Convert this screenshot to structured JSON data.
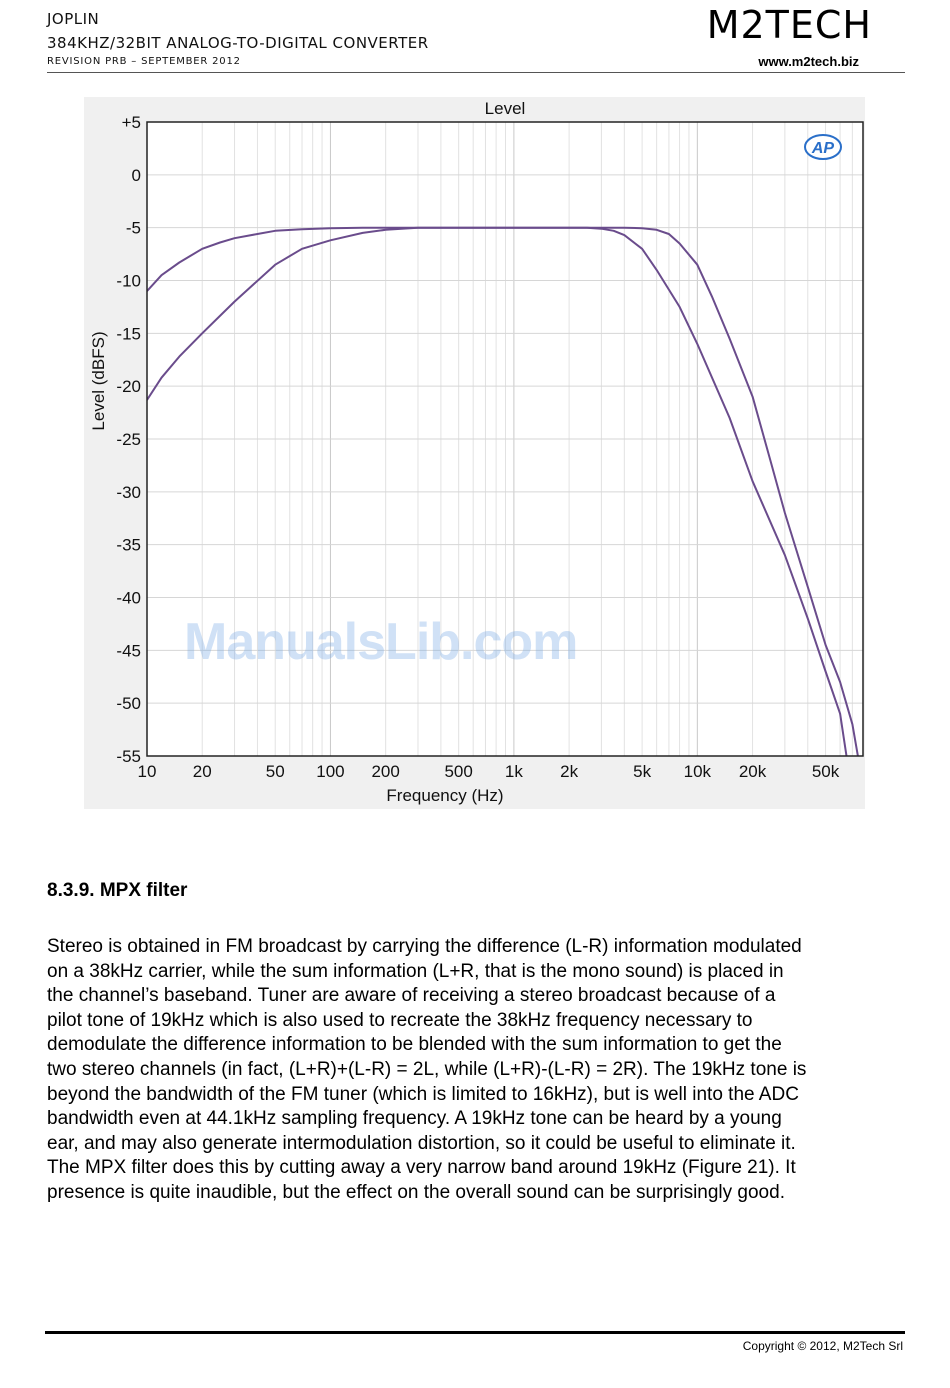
{
  "header": {
    "product": "JOPLIN",
    "subtitle": "384kHz/32bit analog-to-digital converter",
    "revision": "Revision PrB – September 2012",
    "logo": "M2TECH",
    "website": "www.m2tech.biz"
  },
  "chart_data": {
    "type": "line",
    "title": "Level",
    "xlabel": "Frequency (Hz)",
    "ylabel": "Level (dBFS)",
    "x_scale": "log",
    "xlim": [
      10,
      80000
    ],
    "ylim": [
      -55,
      5
    ],
    "x_ticks": [
      10,
      20,
      50,
      100,
      200,
      500,
      1000,
      2000,
      5000,
      10000,
      20000,
      50000
    ],
    "x_tick_labels": [
      "10",
      "20",
      "50",
      "100",
      "200",
      "500",
      "1k",
      "2k",
      "5k",
      "10k",
      "20k",
      "50k"
    ],
    "y_ticks": [
      5,
      0,
      -5,
      -10,
      -15,
      -20,
      -25,
      -30,
      -35,
      -40,
      -45,
      -50,
      -55
    ],
    "y_tick_labels": [
      "+5",
      "0",
      "-5",
      "-10",
      "-15",
      "-20",
      "-25",
      "-30",
      "-35",
      "-40",
      "-45",
      "-50",
      "-55"
    ],
    "grid": true,
    "logo_badge": "AP",
    "series_color": "#6a4c8c",
    "series": [
      {
        "x": [
          10,
          12,
          15,
          20,
          25,
          30,
          40,
          50,
          70,
          100,
          150,
          200,
          500,
          1000,
          2000,
          3000,
          4000,
          5000,
          6000,
          7000,
          8000,
          10000,
          12000,
          15000,
          20000,
          25000,
          30000,
          40000,
          50000,
          60000,
          70000,
          75000
        ],
        "y": [
          -11,
          -9.5,
          -8.3,
          -7,
          -6.4,
          -6,
          -5.6,
          -5.3,
          -5.15,
          -5.05,
          -5.0,
          -5.0,
          -5.0,
          -5.0,
          -5.0,
          -5.0,
          -5.0,
          -5.05,
          -5.2,
          -5.6,
          -6.5,
          -8.5,
          -11.5,
          -15.5,
          -21,
          -27,
          -32,
          -39,
          -44.5,
          -48,
          -52,
          -55
        ]
      },
      {
        "x": [
          10,
          12,
          15,
          20,
          30,
          50,
          70,
          100,
          150,
          200,
          300,
          500,
          1000,
          2000,
          2500,
          3000,
          3500,
          4000,
          5000,
          6000,
          8000,
          10000,
          15000,
          20000,
          30000,
          40000,
          50000,
          60000,
          65000
        ],
        "y": [
          -21.3,
          -19.2,
          -17.2,
          -15,
          -12,
          -8.5,
          -7,
          -6.2,
          -5.5,
          -5.2,
          -5.0,
          -5.0,
          -5.0,
          -5.0,
          -5.0,
          -5.1,
          -5.3,
          -5.7,
          -7,
          -9,
          -12.5,
          -16,
          -23,
          -29,
          -36,
          -42,
          -47,
          -51,
          -55
        ]
      }
    ]
  },
  "watermark": "ManualsLib.com",
  "section": {
    "heading": "8.3.9. MPX filter",
    "lines": [
      "Stereo is obtained in FM broadcast by carrying the difference (L-R) information modulated",
      "on a 38kHz carrier, while the sum information (L+R, that is the mono sound) is placed in",
      "the channel’s baseband. Tuner are aware of receiving a stereo broadcast because of a",
      "pilot tone of 19kHz which is also used to recreate the 38kHz frequency necessary to",
      "demodulate the difference information to be blended with the sum information to get the",
      "two stereo channels (in fact, (L+R)+(L-R) = 2L, while (L+R)-(L-R) = 2R). The 19kHz tone is",
      "beyond the bandwidth of the FM tuner (which is limited to 16kHz), but is well into the ADC",
      "bandwidth even at 44.1kHz sampling frequency. A 19kHz tone can be heard by a young",
      "ear, and may also generate intermodulation distortion, so it could be useful to eliminate it.",
      "The MPX filter does this by cutting away a very narrow band around 19kHz (Figure 21). It",
      "presence is quite inaudible, but the effect on the overall sound can be surprisingly good."
    ]
  },
  "footer": {
    "copyright": "Copyright © 2012, M2Tech Srl"
  }
}
